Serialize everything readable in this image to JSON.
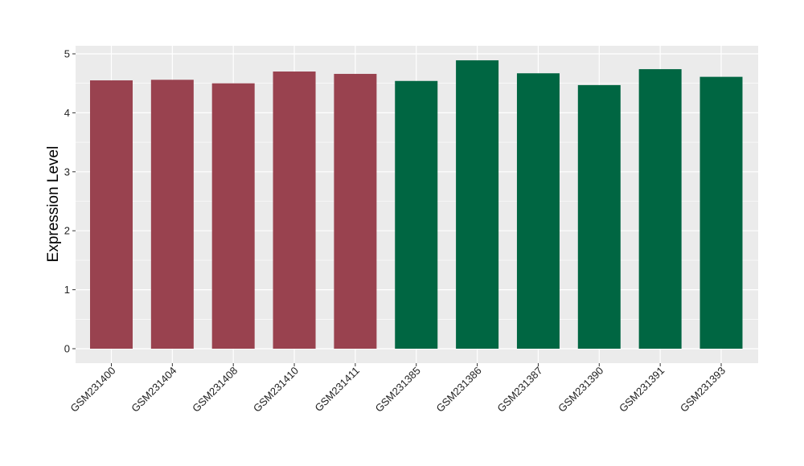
{
  "chart_data": {
    "type": "bar",
    "ylabel": "Expression Level",
    "xlabel": "",
    "ylim": [
      -0.25,
      5.12
    ],
    "yticks": [
      0,
      1,
      2,
      3,
      4,
      5
    ],
    "grid": true,
    "categories": [
      "GSM231400",
      "GSM231404",
      "GSM231408",
      "GSM231410",
      "GSM231411",
      "GSM231385",
      "GSM231386",
      "GSM231387",
      "GSM231390",
      "GSM231391",
      "GSM231393"
    ],
    "values": [
      4.55,
      4.56,
      4.5,
      4.7,
      4.66,
      4.54,
      4.89,
      4.67,
      4.47,
      4.74,
      4.61
    ],
    "bar_colors": [
      "#99424f",
      "#99424f",
      "#99424f",
      "#99424f",
      "#99424f",
      "#006642",
      "#006642",
      "#006642",
      "#006642",
      "#006642",
      "#006642"
    ],
    "panel_color": "#ebebeb",
    "grid_color": "#ffffff"
  }
}
